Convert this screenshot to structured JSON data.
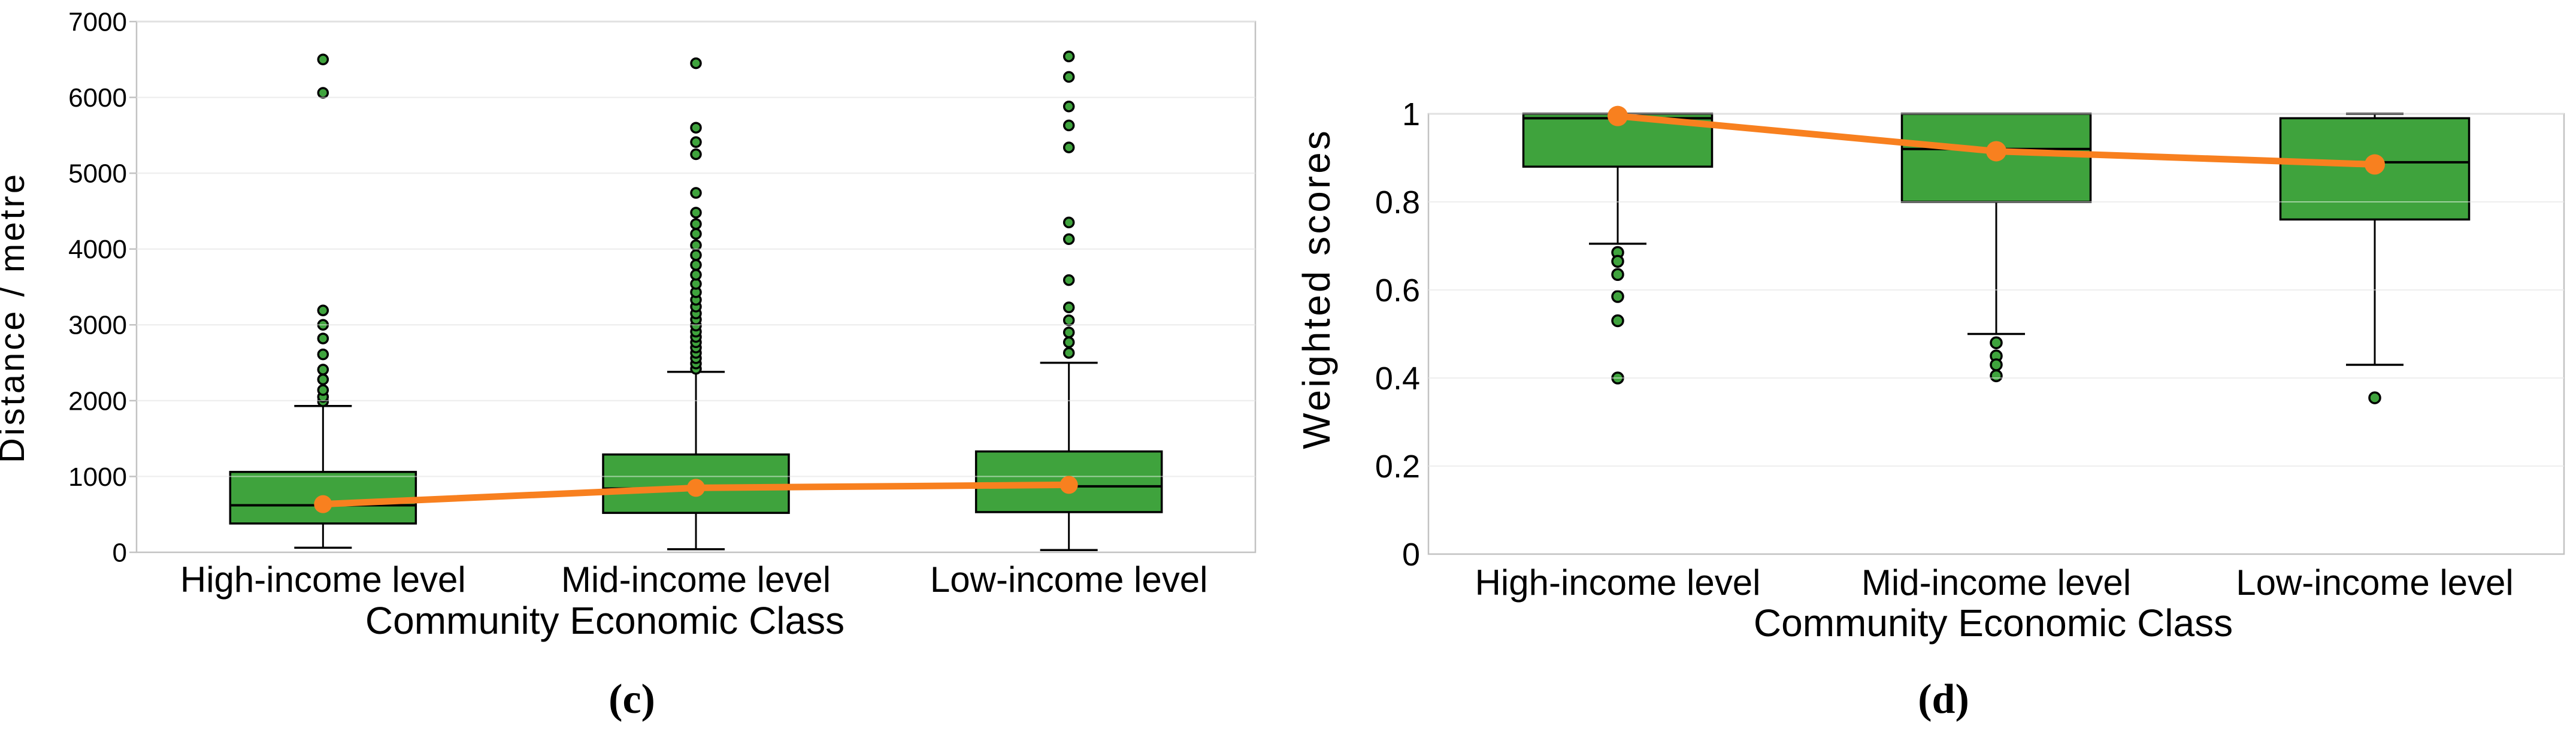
{
  "figure": {
    "captions": [
      {
        "label": "(c)"
      },
      {
        "label": "(d)"
      }
    ]
  },
  "chart_data": [
    {
      "type": "box",
      "caption": "(c)",
      "title": "",
      "xlabel": "Community Economic Class",
      "ylabel": "Distance / metre",
      "categories": [
        "High-income level",
        "Mid-income level",
        "Low-income level"
      ],
      "ylim": [
        0,
        7000
      ],
      "yticks": [
        0,
        1000,
        2000,
        3000,
        4000,
        5000,
        6000,
        7000
      ],
      "yticklabels": [
        "0",
        "1000",
        "2000",
        "3000",
        "4000",
        "5000",
        "6000",
        "7000"
      ],
      "grid": true,
      "legend_position": "none",
      "series": [
        {
          "category": "High-income level",
          "whislo": 60,
          "q1": 380,
          "med": 620,
          "q3": 1060,
          "whishi": 1930,
          "mean": 635,
          "outliers": [
            1990,
            2050,
            2140,
            2280,
            2410,
            2610,
            2820,
            3000,
            3190,
            6060,
            6500
          ]
        },
        {
          "category": "Mid-income level",
          "whislo": 40,
          "q1": 520,
          "med": 840,
          "q3": 1290,
          "whishi": 2380,
          "mean": 850,
          "outliers": [
            2420,
            2490,
            2560,
            2630,
            2700,
            2770,
            2840,
            2910,
            2990,
            3070,
            3150,
            3240,
            3330,
            3430,
            3540,
            3660,
            3790,
            3920,
            4050,
            4200,
            4330,
            4480,
            4740,
            5250,
            5410,
            5600,
            6450
          ]
        },
        {
          "category": "Low-income level",
          "whislo": 30,
          "q1": 530,
          "med": 870,
          "q3": 1330,
          "whishi": 2500,
          "mean": 890,
          "outliers": [
            2630,
            2770,
            2900,
            3060,
            3230,
            3590,
            4130,
            4350,
            5340,
            5630,
            5880,
            6270,
            6540
          ]
        }
      ],
      "mean_line": [
        635,
        850,
        890
      ]
    },
    {
      "type": "box",
      "caption": "(d)",
      "title": "",
      "xlabel": "Community Economic Class",
      "ylabel": "Weighted scores",
      "categories": [
        "High-income level",
        "Mid-income level",
        "Low-income level"
      ],
      "ylim": [
        0,
        1
      ],
      "yticks": [
        0,
        0.2,
        0.4,
        0.6,
        0.8,
        1
      ],
      "yticklabels": [
        "0",
        "0.2",
        "0.4",
        "0.6",
        "0.8",
        "1"
      ],
      "grid": true,
      "legend_position": "none",
      "series": [
        {
          "category": "High-income level",
          "whislo": 0.705,
          "q1": 0.88,
          "med": 0.99,
          "q3": 1.0,
          "whishi": 1.0,
          "mean": 0.995,
          "outliers": [
            0.685,
            0.665,
            0.635,
            0.585,
            0.53,
            0.4
          ]
        },
        {
          "category": "Mid-income level",
          "whislo": 0.5,
          "q1": 0.8,
          "med": 0.92,
          "q3": 1.0,
          "whishi": 1.0,
          "mean": 0.915,
          "outliers": [
            0.48,
            0.45,
            0.43,
            0.405
          ]
        },
        {
          "category": "Low-income level",
          "whislo": 0.43,
          "q1": 0.76,
          "med": 0.89,
          "q3": 0.99,
          "whishi": 1.0,
          "mean": 0.885,
          "outliers": [
            0.355
          ]
        }
      ],
      "mean_line": [
        0.995,
        0.915,
        0.885
      ]
    }
  ],
  "colors": {
    "box_fill": "#3fa33d",
    "box_edge": "#000000",
    "whisker": "#000000",
    "median": "#000000",
    "mean_line": "#f8801f",
    "mean_marker": "#f8801f",
    "outlier_fill": "#3fa33d",
    "outlier_edge": "#000000",
    "gridline": "#dcdcdc",
    "spine": "#c2c2c2",
    "text": "#000000",
    "background": "#ffffff"
  }
}
